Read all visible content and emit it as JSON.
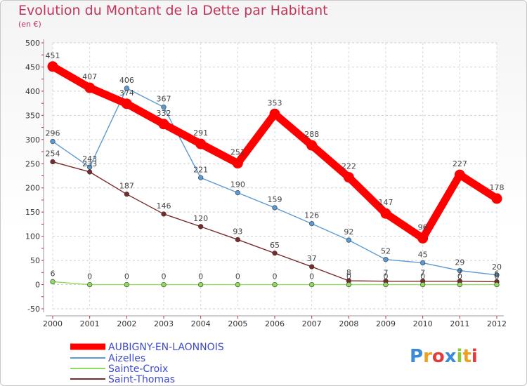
{
  "title": "Evolution du Montant de la Dette par Habitant",
  "unit": "(en €)",
  "logo": "Proxiti",
  "chart_data": {
    "type": "line",
    "x": [
      "2000",
      "2001",
      "2002",
      "2003",
      "2004",
      "2005",
      "2006",
      "2007",
      "2008",
      "2009",
      "2010",
      "2011",
      "2012"
    ],
    "ylim": [
      -50,
      500
    ],
    "yticks": [
      -50,
      0,
      50,
      100,
      150,
      200,
      250,
      300,
      350,
      400,
      450,
      500
    ],
    "grid": true,
    "legend_position": "bottom-left",
    "series": [
      {
        "name": "AUBIGNY-EN-LAONNOIS",
        "color": "#ff0000",
        "values": [
          451,
          407,
          374,
          332,
          291,
          251,
          353,
          288,
          222,
          147,
          96,
          227,
          178
        ],
        "labels": [
          "451",
          "407",
          "374",
          "332",
          "291",
          "251",
          "353",
          "288",
          "222",
          "147",
          "96",
          "227",
          "178"
        ]
      },
      {
        "name": "Aizelles",
        "color": "#5b9bd5",
        "values": [
          296,
          243,
          406,
          367,
          221,
          190,
          159,
          126,
          92,
          52,
          45,
          29,
          20
        ],
        "labels": [
          "296",
          "243",
          "406",
          "367",
          "221",
          "190",
          "159",
          "126",
          "92",
          "52",
          "45",
          "29",
          "20"
        ]
      },
      {
        "name": "Sainte-Croix",
        "color": "#8fdd5a",
        "values": [
          6,
          0,
          0,
          0,
          0,
          0,
          0,
          0,
          0,
          0,
          0,
          0,
          0
        ],
        "labels": [
          "6",
          "0",
          "0",
          "0",
          "0",
          "0",
          "0",
          "0",
          "0",
          "0",
          "0",
          "0",
          "0"
        ]
      },
      {
        "name": "Saint-Thomas",
        "color": "#7a2a2a",
        "values": [
          254,
          233,
          187,
          146,
          120,
          93,
          65,
          37,
          8,
          7,
          7,
          7,
          6
        ],
        "labels": [
          "254",
          "233",
          "187",
          "146",
          "120",
          "93",
          "65",
          "37",
          "8",
          "7",
          "7",
          "7",
          "6"
        ]
      }
    ]
  }
}
